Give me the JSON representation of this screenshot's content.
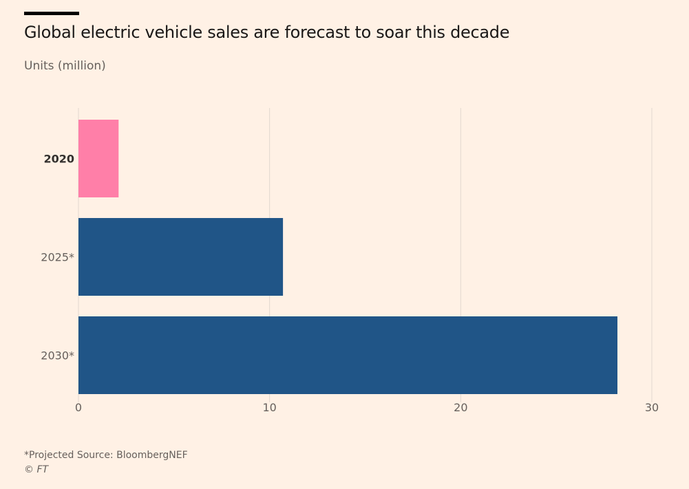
{
  "chart_data": {
    "type": "bar",
    "orientation": "horizontal",
    "title": "Global electric vehicle sales are forecast to soar this decade",
    "subtitle": "Units (million)",
    "categories": [
      "2020",
      "2025*",
      "2030*"
    ],
    "values": [
      2.1,
      10.7,
      28.2
    ],
    "bar_colors": [
      "#ff7fa8",
      "#205587"
    ],
    "highlighted_category": "2020",
    "xlim": [
      0,
      30
    ],
    "xticks": [
      "0",
      "10",
      "20",
      "30"
    ],
    "grid": "vertical",
    "xlabel": "",
    "ylabel": ""
  },
  "footer": {
    "note": "*Projected Source: BloombergNEF",
    "copyright": "© FT"
  },
  "colors": {
    "background": "#fff1e5",
    "grid": "#e2d8cf"
  }
}
